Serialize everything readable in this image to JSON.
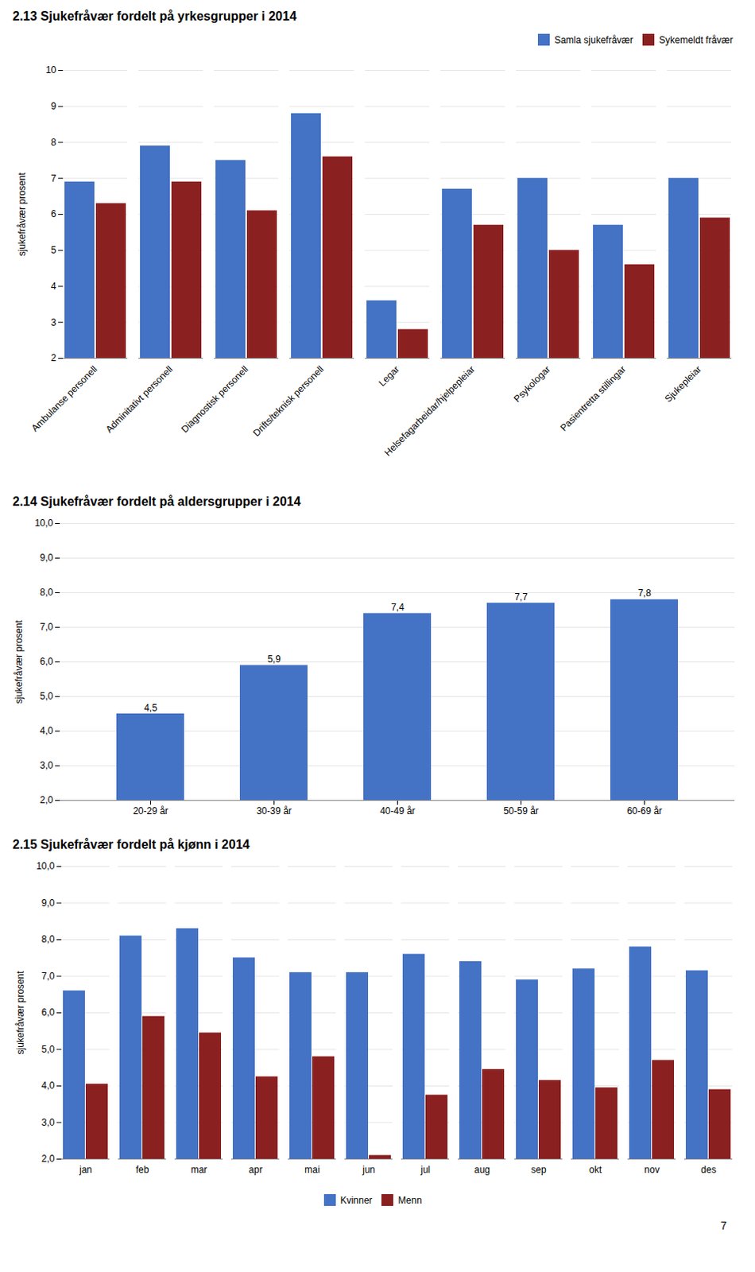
{
  "chart_data": [
    {
      "type": "bar",
      "title": "2.13 Sjukefråvær fordelt på yrkesgrupper i 2014",
      "categories": [
        "Ambulanse personell",
        "Adminitativt personell",
        "Diagnostisk personell",
        "Drifts/teknisk personell",
        "Legar",
        "Helsefagarbeidar/hjelpepleiar",
        "Psykologar",
        "Pasientretta stillingar",
        "Sjukepleiar"
      ],
      "series": [
        {
          "name": "Samla sjukefråvær",
          "color": "#4472C4",
          "values": [
            6.9,
            7.9,
            7.5,
            8.8,
            3.6,
            6.7,
            7.0,
            5.7,
            7.0
          ]
        },
        {
          "name": "Sykemeldt fråvær",
          "color": "#8B2020",
          "values": [
            6.3,
            6.9,
            6.1,
            7.6,
            2.8,
            5.7,
            5.0,
            4.6,
            5.9
          ]
        }
      ],
      "ylabel": "sjukefråvær prosent",
      "ylim": [
        2,
        10
      ],
      "yticks": [
        2,
        3,
        4,
        5,
        6,
        7,
        8,
        9,
        10
      ],
      "grid": true,
      "legend": "upper right"
    },
    {
      "type": "bar",
      "title": "2.14 Sjukefråvær fordelt på aldersgrupper i 2014",
      "categories": [
        "20-29 år",
        "30-39 år",
        "40-49 år",
        "50-59 år",
        "60-69 år"
      ],
      "values": [
        4.5,
        5.9,
        7.4,
        7.7,
        7.8
      ],
      "value_labels": [
        "4,5",
        "5,9",
        "7,4",
        "7,7",
        "7,8"
      ],
      "data_labels": true,
      "color": "#4472C4",
      "ylabel": "sjukefråvær prosent",
      "ylim": [
        2.0,
        10.0
      ],
      "yticks": [
        {
          "value": 2.0,
          "label": "2,0"
        },
        {
          "value": 3.0,
          "label": "3,0"
        },
        {
          "value": 4.0,
          "label": "4,0"
        },
        {
          "value": 5.0,
          "label": "5,0"
        },
        {
          "value": 6.0,
          "label": "6,0"
        },
        {
          "value": 7.0,
          "label": "7,0"
        },
        {
          "value": 8.0,
          "label": "8,0"
        },
        {
          "value": 9.0,
          "label": "9,0"
        },
        {
          "value": 10.0,
          "label": "10,0"
        }
      ],
      "grid": true
    },
    {
      "type": "bar",
      "title": "2.15 Sjukefråvær fordelt på kjønn i 2014",
      "categories": [
        "jan",
        "feb",
        "mar",
        "apr",
        "mai",
        "jun",
        "jul",
        "aug",
        "sep",
        "okt",
        "nov",
        "des"
      ],
      "series": [
        {
          "name": "Kvinner",
          "color": "#4472C4",
          "values": [
            6.6,
            8.1,
            8.3,
            7.5,
            7.1,
            7.1,
            7.6,
            7.4,
            6.9,
            7.2,
            7.8,
            7.15
          ]
        },
        {
          "name": "Menn",
          "color": "#8B2020",
          "values": [
            4.05,
            5.9,
            5.45,
            4.25,
            4.8,
            2.1,
            3.75,
            4.45,
            4.15,
            3.95,
            4.7,
            3.9
          ]
        }
      ],
      "ylabel": "sjukefråvær prosent",
      "ylim": [
        2.0,
        10.0
      ],
      "yticks": [
        {
          "value": 2.0,
          "label": "2,0"
        },
        {
          "value": 3.0,
          "label": "3,0"
        },
        {
          "value": 4.0,
          "label": "4,0"
        },
        {
          "value": 5.0,
          "label": "5,0"
        },
        {
          "value": 6.0,
          "label": "6,0"
        },
        {
          "value": 7.0,
          "label": "7,0"
        },
        {
          "value": 8.0,
          "label": "8,0"
        },
        {
          "value": 9.0,
          "label": "9,0"
        },
        {
          "value": 10.0,
          "label": "10,0"
        }
      ],
      "grid": true,
      "legend": "bottom",
      "annotations": [
        "7"
      ]
    }
  ]
}
